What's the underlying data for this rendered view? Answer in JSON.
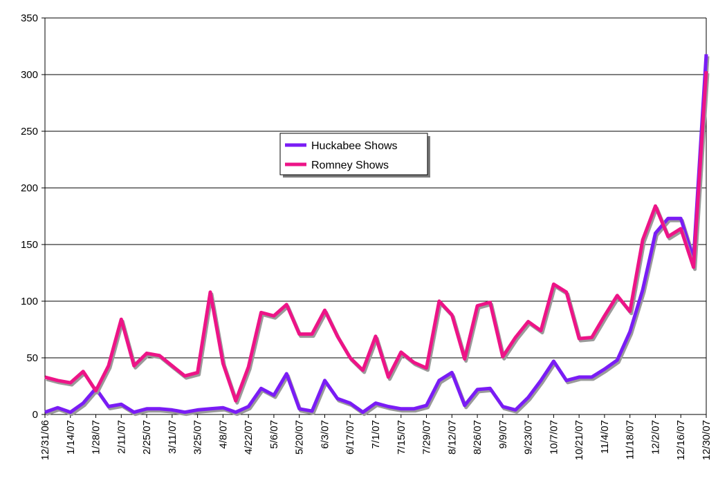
{
  "chart_data": {
    "type": "line",
    "title": "",
    "xlabel": "",
    "ylabel": "",
    "ylim": [
      0,
      350
    ],
    "yticks": [
      0,
      50,
      100,
      150,
      200,
      250,
      300,
      350
    ],
    "grid": true,
    "legend_position": "center-left",
    "x": [
      "12/31/06",
      "1/7/07",
      "1/14/07",
      "1/21/07",
      "1/28/07",
      "2/4/07",
      "2/11/07",
      "2/18/07",
      "2/25/07",
      "3/4/07",
      "3/11/07",
      "3/18/07",
      "3/25/07",
      "4/1/07",
      "4/8/07",
      "4/15/07",
      "4/22/07",
      "4/29/07",
      "5/6/07",
      "5/13/07",
      "5/20/07",
      "5/27/07",
      "6/3/07",
      "6/10/07",
      "6/17/07",
      "6/24/07",
      "7/1/07",
      "7/8/07",
      "7/15/07",
      "7/22/07",
      "7/29/07",
      "8/5/07",
      "8/12/07",
      "8/19/07",
      "8/26/07",
      "9/2/07",
      "9/9/07",
      "9/16/07",
      "9/23/07",
      "9/30/07",
      "10/7/07",
      "10/14/07",
      "10/21/07",
      "10/28/07",
      "11/4/07",
      "11/11/07",
      "11/18/07",
      "11/25/07",
      "12/2/07",
      "12/9/07",
      "12/16/07",
      "12/23/07",
      "12/30/07"
    ],
    "x_tick_labels": [
      "12/31/06",
      "1/14/07",
      "1/28/07",
      "2/11/07",
      "2/25/07",
      "3/11/07",
      "3/25/07",
      "4/8/07",
      "4/22/07",
      "5/6/07",
      "5/20/07",
      "6/3/07",
      "6/17/07",
      "7/1/07",
      "7/15/07",
      "7/29/07",
      "8/12/07",
      "8/26/07",
      "9/9/07",
      "9/23/07",
      "10/7/07",
      "10/21/07",
      "11/4/07",
      "11/18/07",
      "12/2/07",
      "12/16/07",
      "12/30/07"
    ],
    "series": [
      {
        "name": "Huckabee Shows",
        "color": "#7a1cf5",
        "values": [
          2,
          6,
          2,
          10,
          23,
          7,
          9,
          2,
          5,
          5,
          4,
          2,
          4,
          5,
          6,
          2,
          7,
          23,
          17,
          36,
          5,
          3,
          30,
          14,
          10,
          2,
          10,
          7,
          5,
          5,
          8,
          30,
          37,
          8,
          22,
          23,
          7,
          4,
          15,
          30,
          47,
          30,
          33,
          33,
          40,
          48,
          73,
          110,
          160,
          173,
          173,
          137,
          318
        ]
      },
      {
        "name": "Romney Shows",
        "color": "#ed1487",
        "values": [
          33,
          30,
          28,
          38,
          21,
          43,
          84,
          43,
          54,
          52,
          43,
          34,
          37,
          108,
          45,
          12,
          42,
          90,
          87,
          97,
          71,
          71,
          92,
          69,
          50,
          39,
          69,
          33,
          55,
          46,
          41,
          100,
          88,
          49,
          96,
          99,
          51,
          68,
          82,
          74,
          115,
          108,
          67,
          68,
          87,
          105,
          91,
          154,
          184,
          157,
          164,
          130,
          303
        ]
      }
    ]
  }
}
